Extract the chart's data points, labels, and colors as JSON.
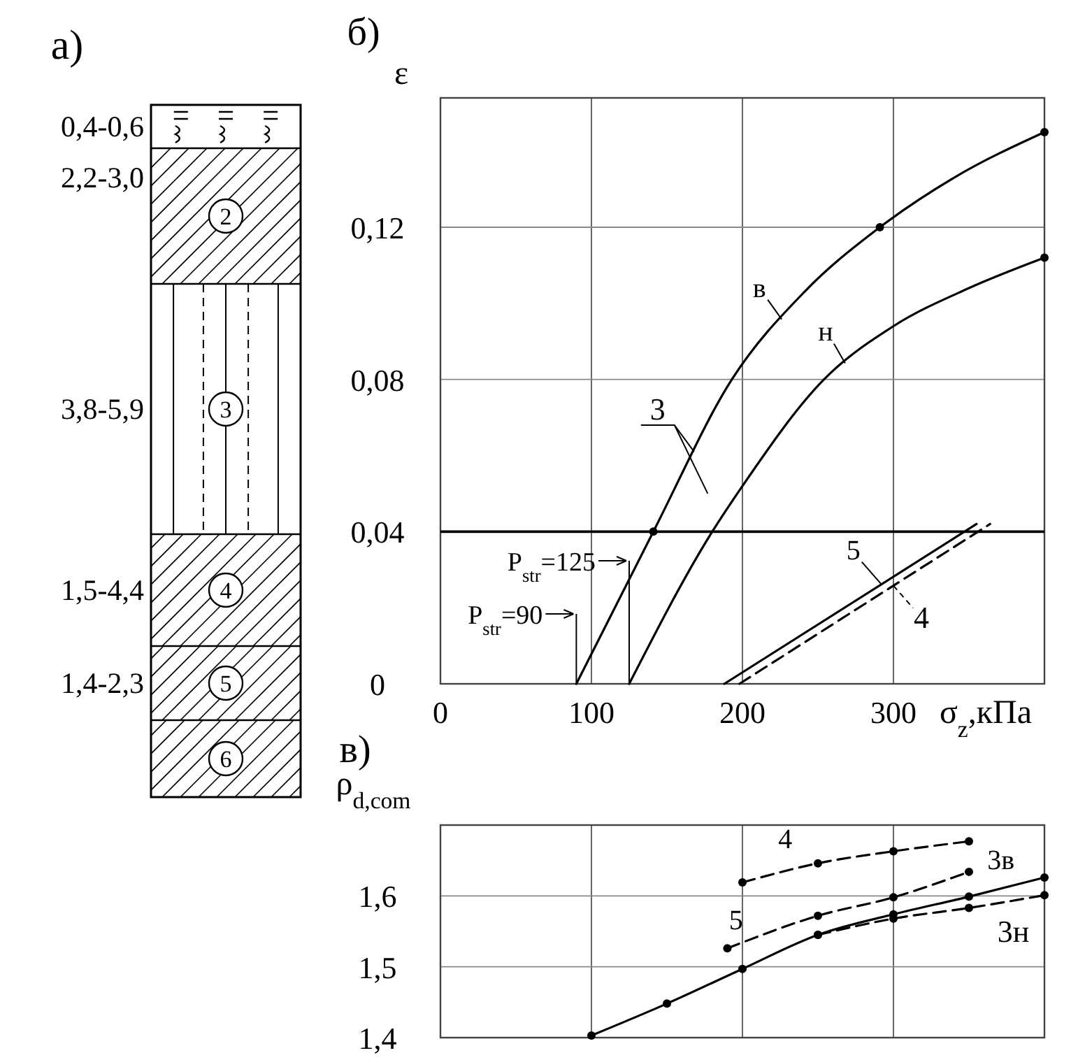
{
  "chart_data": [
    {
      "type": "other",
      "title": "а)",
      "annotations": [
        "0,4-0,6",
        "2,2-3,0",
        "3,8-5,9",
        "1,5-4,4",
        "1,4-2,3",
        "2",
        "3",
        "4",
        "5",
        "6"
      ]
    },
    {
      "type": "line",
      "title": "б)",
      "xlabel": "σ$_{z}$,кПа",
      "ylabel": "ε",
      "xlim": [
        0,
        400
      ],
      "ylim": [
        0,
        0.154
      ],
      "xticks": [
        0,
        100,
        200,
        300
      ],
      "yticks": [
        0,
        {
          "value": 0.04,
          "label": "0,04"
        },
        {
          "value": 0.08,
          "label": "0,08"
        },
        {
          "value": 0.12,
          "label": "0,12"
        }
      ],
      "grid": true,
      "marker": "none",
      "series": [
        {
          "name": "в",
          "color": "#000000",
          "x": [
            90,
            141,
            193,
            241,
            291,
            340,
            400
          ],
          "values": [
            0,
            0.04,
            0.08,
            0.103,
            0.12,
            0.133,
            0.145
          ]
        },
        {
          "name": "н",
          "color": "#000000",
          "x": [
            125,
            180,
            200,
            254,
            300,
            350,
            400
          ],
          "values": [
            0,
            0.04,
            0.052,
            0.08,
            0.094,
            0.104,
            0.112
          ]
        },
        {
          "name": "5",
          "color": "#000000",
          "x": [
            188,
            355
          ],
          "values": [
            0,
            0.042
          ]
        },
        {
          "name": "4",
          "color": "#000000",
          "line_style": "dashed",
          "x": [
            198,
            364
          ],
          "values": [
            0,
            0.042
          ]
        },
        {
          "type": "scatter",
          "color": "#000000",
          "marker": "circle",
          "x": [
            141,
            291,
            400,
            400
          ],
          "values": [
            0.04,
            0.12,
            0.145,
            0.112
          ]
        }
      ],
      "ref_lines": [
        {
          "axis": "y",
          "value": 0.04
        },
        {
          "axis": "x",
          "value": 90,
          "label": "P$_{str}$=90"
        },
        {
          "axis": "x",
          "value": 125,
          "label": "P$_{str}$=125"
        }
      ],
      "annotations": [
        "3"
      ]
    },
    {
      "type": "line",
      "title": "в)",
      "ylabel": "ρ$_{d,com}$",
      "xlim": [
        0,
        400
      ],
      "ylim": [
        1.4,
        1.7
      ],
      "xticks": [
        0,
        100,
        200,
        300
      ],
      "yticks": [
        {
          "value": 1.4,
          "label": "1,4"
        },
        {
          "value": 1.5,
          "label": "1,5"
        },
        {
          "value": 1.6,
          "label": "1,6"
        }
      ],
      "grid": true,
      "tick_labels": "y",
      "marker": "circle",
      "series": [
        {
          "name": "4",
          "color": "#000000",
          "line_style": "dashed",
          "x": [
            200,
            250,
            300,
            350
          ],
          "values": [
            1.619,
            1.646,
            1.663,
            1.677
          ]
        },
        {
          "name": "5",
          "color": "#000000",
          "line_style": "dashed",
          "x": [
            190,
            250,
            300,
            350
          ],
          "values": [
            1.526,
            1.572,
            1.598,
            1.634
          ]
        },
        {
          "name": "3в",
          "color": "#000000",
          "x": [
            100,
            150,
            200,
            250,
            300,
            350,
            400
          ],
          "values": [
            1.403,
            1.448,
            1.497,
            1.545,
            1.574,
            1.599,
            1.626
          ]
        },
        {
          "name": "3н",
          "color": "#000000",
          "line_style": "dashed",
          "x": [
            250,
            300,
            350,
            400
          ],
          "values": [
            1.545,
            1.568,
            1.583,
            1.601
          ]
        }
      ]
    }
  ]
}
